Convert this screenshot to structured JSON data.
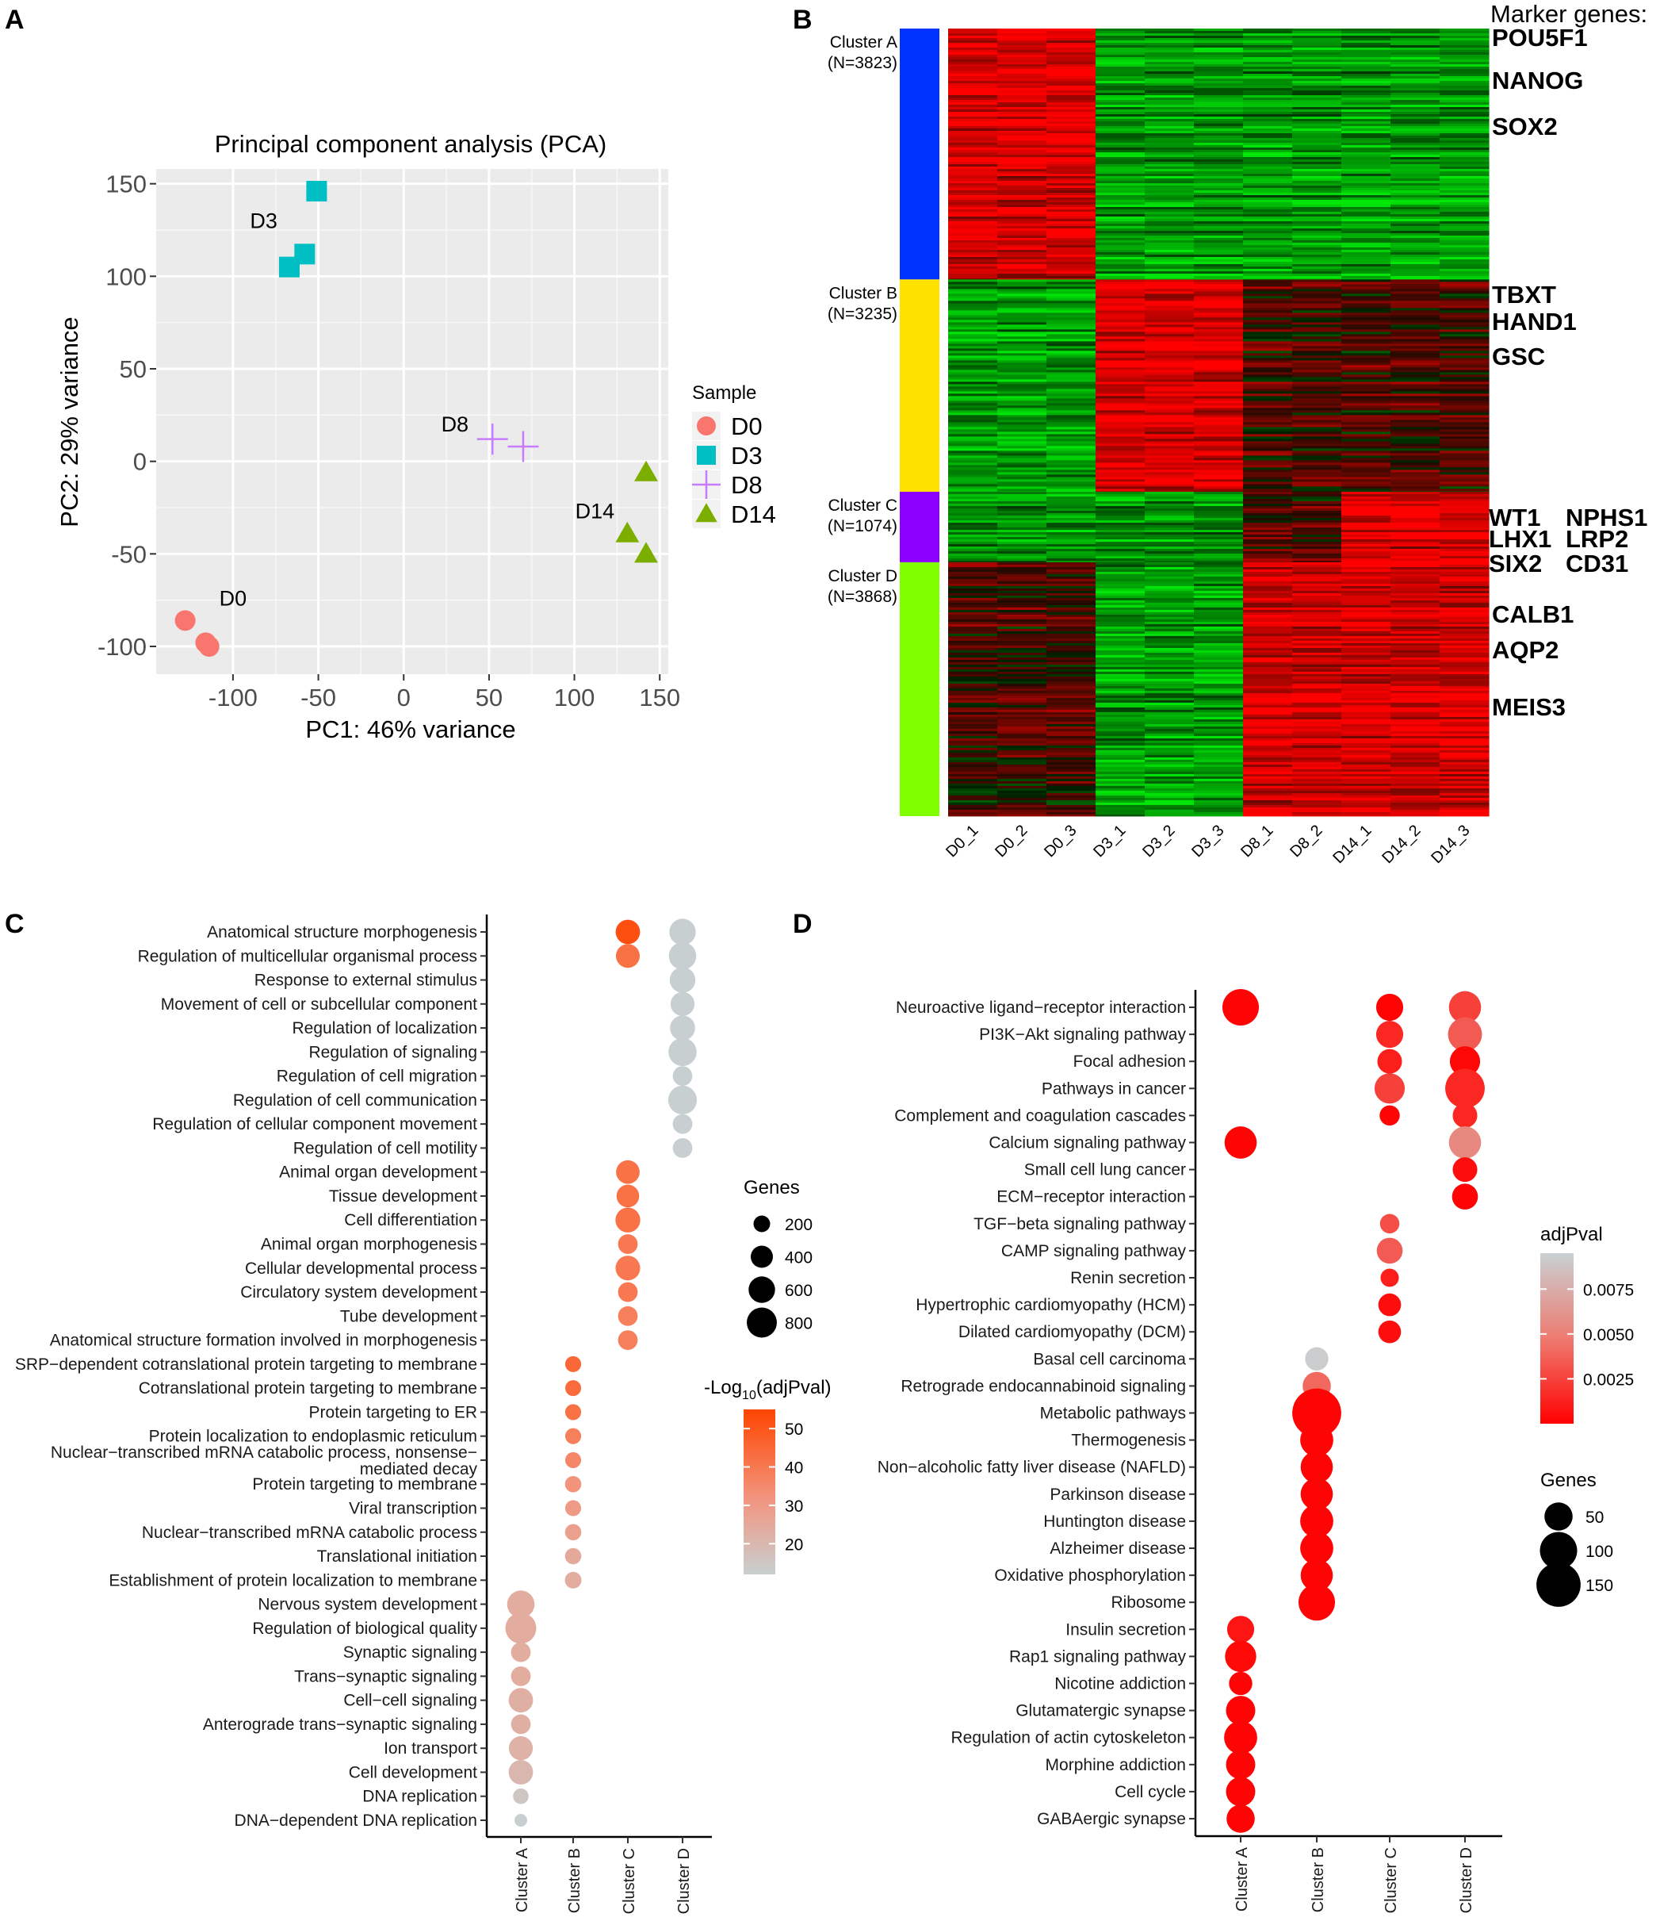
{
  "panels": {
    "A": {
      "letter": "A"
    },
    "B": {
      "letter": "B"
    },
    "C": {
      "letter": "C"
    },
    "D": {
      "letter": "D"
    }
  },
  "chart_data": [
    {
      "panel": "A",
      "type": "scatter",
      "title": "Principal component analysis (PCA)",
      "xlabel": "PC1: 46% variance",
      "ylabel": "PC2: 29% variance",
      "xlim": [
        -145,
        155
      ],
      "ylim": [
        -115,
        158
      ],
      "xticks": [
        -100,
        -50,
        0,
        50,
        100,
        150
      ],
      "yticks": [
        -100,
        -50,
        0,
        50,
        100,
        150
      ],
      "legend_title": "Sample",
      "legend": [
        {
          "name": "D0",
          "shape": "circle",
          "color": "#F8766D"
        },
        {
          "name": "D3",
          "shape": "square",
          "color": "#00BFC4"
        },
        {
          "name": "D8",
          "shape": "cross",
          "color": "#C77CFF"
        },
        {
          "name": "D14",
          "shape": "triangle",
          "color": "#7CAE00"
        }
      ],
      "series": [
        {
          "name": "D0",
          "points": [
            [
              -128,
              -86
            ],
            [
              -116,
              -98
            ],
            [
              -114,
              -100
            ]
          ]
        },
        {
          "name": "D3",
          "points": [
            [
              -51,
              146
            ],
            [
              -58,
              112
            ],
            [
              -67,
              105
            ]
          ]
        },
        {
          "name": "D8",
          "points": [
            [
              52,
              12
            ],
            [
              70,
              8
            ]
          ]
        },
        {
          "name": "D14",
          "points": [
            [
              142,
              -6
            ],
            [
              131,
              -39
            ],
            [
              142,
              -50
            ]
          ]
        }
      ],
      "annotations": [
        {
          "text": "D3",
          "x": -82,
          "y": 130
        },
        {
          "text": "D8",
          "x": 30,
          "y": 20
        },
        {
          "text": "D14",
          "x": 112,
          "y": -27
        },
        {
          "text": "D0",
          "x": -100,
          "y": -74
        }
      ]
    },
    {
      "panel": "B",
      "type": "heatmap",
      "columns": [
        "D0_1",
        "D0_2",
        "D0_3",
        "D3_1",
        "D3_2",
        "D3_3",
        "D8_1",
        "D8_2",
        "D14_1",
        "D14_2",
        "D14_3"
      ],
      "marker_title": "Marker genes:",
      "clusters": [
        {
          "name": "Cluster A",
          "n": "(N=3823)",
          "genes": 3823,
          "color": "#0033FF",
          "pattern": [
            "up",
            "up",
            "up",
            "down",
            "down",
            "down",
            "down",
            "down",
            "down",
            "down",
            "down"
          ]
        },
        {
          "name": "Cluster B",
          "n": "(N=3235)",
          "genes": 3235,
          "color": "#FFE100",
          "pattern": [
            "down",
            "down",
            "down",
            "up",
            "up",
            "up",
            "mid",
            "mid",
            "mid",
            "mid",
            "mid"
          ]
        },
        {
          "name": "Cluster C",
          "n": "(N=1074)",
          "genes": 1074,
          "color": "#8C00FF",
          "pattern": [
            "down",
            "down",
            "down",
            "down",
            "down",
            "down",
            "mid",
            "mid",
            "up",
            "up",
            "up"
          ]
        },
        {
          "name": "Cluster D",
          "n": "(N=3868)",
          "genes": 3868,
          "color": "#7FFF00",
          "pattern": [
            "mid",
            "mid",
            "mid",
            "down",
            "down",
            "down",
            "up",
            "up",
            "up",
            "up",
            "up"
          ]
        }
      ],
      "markers": [
        "POU5F1",
        "NANOG",
        "SOX2",
        "TBXT",
        "HAND1",
        "GSC",
        "WT1",
        "NPHS1",
        "LHX1",
        "LRP2",
        "SIX2",
        "CD31",
        "CALB1",
        "AQP2",
        "MEIS3"
      ]
    },
    {
      "panel": "C",
      "type": "scatter",
      "subtype": "dot",
      "clusters": [
        "Cluster A",
        "Cluster B",
        "Cluster C",
        "Cluster D"
      ],
      "size_legend_title": "Genes",
      "size_legend": [
        200,
        400,
        600,
        800
      ],
      "color_legend_title": "-Log10(adjPval)",
      "color_legend": [
        50,
        40,
        30,
        20
      ],
      "color_range": [
        12,
        55
      ],
      "terms": [
        {
          "label": "Anatomical structure morphogenesis",
          "points": [
            [
              2,
              500,
              52
            ],
            [
              3,
              600,
              12
            ]
          ]
        },
        {
          "label": "Regulation of multicellular organismal process",
          "points": [
            [
              2,
              470,
              42
            ],
            [
              3,
              650,
              12
            ]
          ]
        },
        {
          "label": "Response to external stimulus",
          "points": [
            [
              3,
              560,
              12
            ]
          ]
        },
        {
          "label": "Movement of cell or subcellular component",
          "points": [
            [
              3,
              480,
              12
            ]
          ]
        },
        {
          "label": "Regulation of localization",
          "points": [
            [
              3,
              530,
              12
            ]
          ]
        },
        {
          "label": "Regulation of signaling",
          "points": [
            [
              3,
              690,
              12
            ]
          ]
        },
        {
          "label": "Regulation of cell migration",
          "points": [
            [
              3,
              300,
              12
            ]
          ]
        },
        {
          "label": "Regulation of cell communication",
          "points": [
            [
              3,
              720,
              12
            ]
          ]
        },
        {
          "label": "Regulation of cellular component movement",
          "points": [
            [
              3,
              300,
              12
            ]
          ]
        },
        {
          "label": "Regulation of cell motility",
          "points": [
            [
              3,
              300,
              12
            ]
          ]
        },
        {
          "label": "Animal organ development",
          "points": [
            [
              2,
              460,
              42
            ]
          ]
        },
        {
          "label": "Tissue development",
          "points": [
            [
              2,
              420,
              42
            ]
          ]
        },
        {
          "label": "Cell differentiation",
          "points": [
            [
              2,
              520,
              42
            ]
          ]
        },
        {
          "label": "Animal organ morphogenesis",
          "points": [
            [
              2,
              300,
              40
            ]
          ]
        },
        {
          "label": "Cellular developmental process",
          "points": [
            [
              2,
              510,
              40
            ]
          ]
        },
        {
          "label": "Circulatory system development",
          "points": [
            [
              2,
              300,
              40
            ]
          ]
        },
        {
          "label": "Tube development",
          "points": [
            [
              2,
              300,
              38
            ]
          ]
        },
        {
          "label": "Anatomical structure formation involved in morphogenesis",
          "points": [
            [
              2,
              300,
              38
            ]
          ]
        },
        {
          "label": "SRP−dependent cotranslational protein targeting to membrane",
          "points": [
            [
              1,
              180,
              45
            ]
          ]
        },
        {
          "label": "Cotranslational protein targeting to membrane",
          "points": [
            [
              1,
              180,
              44
            ]
          ]
        },
        {
          "label": "Protein targeting to ER",
          "points": [
            [
              1,
              180,
              42
            ]
          ]
        },
        {
          "label": "Protein localization to endoplasmic reticulum",
          "points": [
            [
              1,
              180,
              38
            ]
          ]
        },
        {
          "label": "Nuclear−transcribed mRNA catabolic process, nonsense−mediated decay",
          "points": [
            [
              1,
              180,
              36
            ]
          ]
        },
        {
          "label": "Protein targeting to membrane",
          "points": [
            [
              1,
              190,
              32
            ]
          ]
        },
        {
          "label": "Viral transcription",
          "points": [
            [
              1,
              180,
              30
            ]
          ]
        },
        {
          "label": "Nuclear−transcribed mRNA catabolic process",
          "points": [
            [
              1,
              190,
              28
            ]
          ]
        },
        {
          "label": "Translational initiation",
          "points": [
            [
              1,
              190,
              25
            ]
          ]
        },
        {
          "label": "Establishment of protein localization to membrane",
          "points": [
            [
              1,
              200,
              24
            ]
          ]
        },
        {
          "label": "Nervous system development",
          "points": [
            [
              0,
              650,
              24
            ]
          ]
        },
        {
          "label": "Regulation of biological quality",
          "points": [
            [
              0,
              850,
              24
            ]
          ]
        },
        {
          "label": "Synaptic signaling",
          "points": [
            [
              0,
              300,
              24
            ]
          ]
        },
        {
          "label": "Trans−synaptic signaling",
          "points": [
            [
              0,
              300,
              24
            ]
          ]
        },
        {
          "label": "Cell−cell signaling",
          "points": [
            [
              0,
              500,
              23
            ]
          ]
        },
        {
          "label": "Anterograde trans−synaptic signaling",
          "points": [
            [
              0,
              300,
              23
            ]
          ]
        },
        {
          "label": "Ion transport",
          "points": [
            [
              0,
              480,
              22
            ]
          ]
        },
        {
          "label": "Cell development",
          "points": [
            [
              0,
              500,
              20
            ]
          ]
        },
        {
          "label": "DNA replication",
          "points": [
            [
              0,
              170,
              15
            ]
          ]
        },
        {
          "label": "DNA−dependent DNA replication",
          "points": [
            [
              0,
              100,
              12
            ]
          ]
        }
      ]
    },
    {
      "panel": "D",
      "type": "scatter",
      "subtype": "dot",
      "clusters": [
        "Cluster A",
        "Cluster B",
        "Cluster C",
        "Cluster D"
      ],
      "size_legend_title": "Genes",
      "size_legend": [
        50,
        100,
        150
      ],
      "color_legend_title": "adjPval",
      "color_legend": [
        0.0075,
        0.005,
        0.0025
      ],
      "color_range": [
        0,
        0.0095
      ],
      "terms": [
        {
          "label": "Neuroactive ligand−receptor interaction",
          "points": [
            [
              0,
              95,
              0.0002
            ],
            [
              2,
              45,
              0.0001
            ],
            [
              3,
              70,
              0.0025
            ]
          ]
        },
        {
          "label": "PI3K−Akt signaling pathway",
          "points": [
            [
              2,
              45,
              0.0015
            ],
            [
              3,
              80,
              0.0035
            ]
          ]
        },
        {
          "label": "Focal adhesion",
          "points": [
            [
              2,
              35,
              0.0012
            ],
            [
              3,
              60,
              0.0003
            ]
          ]
        },
        {
          "label": "Pathways in cancer",
          "points": [
            [
              2,
              60,
              0.0025
            ],
            [
              3,
              115,
              0.0015
            ]
          ]
        },
        {
          "label": "Complement and coagulation cascades",
          "points": [
            [
              2,
              20,
              0.0002
            ],
            [
              3,
              35,
              0.0015
            ]
          ]
        },
        {
          "label": "Calcium signaling pathway",
          "points": [
            [
              0,
              70,
              0.0002
            ],
            [
              3,
              70,
              0.0055
            ]
          ]
        },
        {
          "label": "Small cell lung cancer",
          "points": [
            [
              3,
              35,
              0.0005
            ]
          ]
        },
        {
          "label": "ECM−receptor interaction",
          "points": [
            [
              3,
              40,
              0.0002
            ]
          ]
        },
        {
          "label": "TGF−beta signaling pathway",
          "points": [
            [
              2,
              18,
              0.003
            ]
          ]
        },
        {
          "label": "CAMP signaling pathway",
          "points": [
            [
              2,
              40,
              0.0035
            ]
          ]
        },
        {
          "label": "Renin secretion",
          "points": [
            [
              2,
              15,
              0.0012
            ]
          ]
        },
        {
          "label": "Hypertrophic cardiomyopathy (HCM)",
          "points": [
            [
              2,
              28,
              0.0005
            ]
          ]
        },
        {
          "label": "Dilated cardiomyopathy (DCM)",
          "points": [
            [
              2,
              28,
              0.0005
            ]
          ]
        },
        {
          "label": "Basal cell carcinoma",
          "points": [
            [
              1,
              30,
              0.0092
            ]
          ]
        },
        {
          "label": "Retrograde endocannabinoid signaling",
          "points": [
            [
              1,
              50,
              0.004
            ]
          ]
        },
        {
          "label": "Metabolic pathways",
          "points": [
            [
              1,
              190,
              0.0002
            ]
          ]
        },
        {
          "label": "Thermogenesis",
          "points": [
            [
              1,
              75,
              0.0002
            ]
          ]
        },
        {
          "label": "Non−alcoholic fatty liver disease (NAFLD)",
          "points": [
            [
              1,
              70,
              0.0002
            ]
          ]
        },
        {
          "label": "Parkinson disease",
          "points": [
            [
              1,
              70,
              0.0002
            ]
          ]
        },
        {
          "label": "Huntington disease",
          "points": [
            [
              1,
              75,
              0.0002
            ]
          ]
        },
        {
          "label": "Alzheimer disease",
          "points": [
            [
              1,
              75,
              0.0002
            ]
          ]
        },
        {
          "label": "Oxidative phosphorylation",
          "points": [
            [
              1,
              70,
              0.0002
            ]
          ]
        },
        {
          "label": "Ribosome",
          "points": [
            [
              1,
              95,
              0.0002
            ]
          ]
        },
        {
          "label": "Insulin secretion",
          "points": [
            [
              0,
              45,
              0.0008
            ]
          ]
        },
        {
          "label": "Rap1 signaling pathway",
          "points": [
            [
              0,
              65,
              0.0004
            ]
          ]
        },
        {
          "label": "Nicotine addiction",
          "points": [
            [
              0,
              30,
              0.0002
            ]
          ]
        },
        {
          "label": "Glutamatergic synapse",
          "points": [
            [
              0,
              55,
              0.0002
            ]
          ]
        },
        {
          "label": "Regulation of actin cytoskeleton",
          "points": [
            [
              0,
              75,
              0.0002
            ]
          ]
        },
        {
          "label": "Morphine addiction",
          "points": [
            [
              0,
              55,
              0.0002
            ]
          ]
        },
        {
          "label": "Cell cycle",
          "points": [
            [
              0,
              55,
              0.0002
            ]
          ]
        },
        {
          "label": "GABAergic synapse",
          "points": [
            [
              0,
              50,
              0.0002
            ]
          ]
        }
      ]
    }
  ]
}
